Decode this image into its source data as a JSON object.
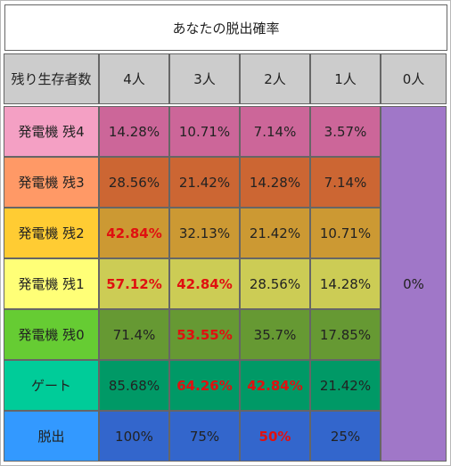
{
  "title": "あなたの脱出確率",
  "header": {
    "corner": "残り生存者数",
    "columns": [
      "4人",
      "3人",
      "2人",
      "1人",
      "0人"
    ]
  },
  "rows": [
    {
      "label": "発電機 残4",
      "values": [
        "14.28%",
        "10.71%",
        "7.14%",
        "3.57%"
      ]
    },
    {
      "label": "発電機 残3",
      "values": [
        "28.56%",
        "21.42%",
        "14.28%",
        "7.14%"
      ]
    },
    {
      "label": "発電機 残2",
      "values": [
        "42.84%",
        "32.13%",
        "21.42%",
        "10.71%"
      ]
    },
    {
      "label": "発電機 残1",
      "values": [
        "57.12%",
        "42.84%",
        "28.56%",
        "14.28%"
      ]
    },
    {
      "label": "発電機 残0",
      "values": [
        "71.4%",
        "53.55%",
        "35.7%",
        "17.85%"
      ]
    },
    {
      "label": "ゲート",
      "values": [
        "85.68%",
        "64.26%",
        "42.84%",
        "21.42%"
      ]
    },
    {
      "label": "脱出",
      "values": [
        "100%",
        "75%",
        "50%",
        "25%"
      ]
    }
  ],
  "zero_column_value": "0%",
  "colors": {
    "header_bg": "#cccccc",
    "row_label_bg": [
      "#f4a0c4",
      "#ff9966",
      "#ffcc33",
      "#ffff77",
      "#66cc33",
      "#00cc99",
      "#3399ff"
    ],
    "row_value_bg": [
      "#cc6699",
      "#cc6633",
      "#cc9933",
      "#cccc55",
      "#669933",
      "#009966",
      "#3366cc"
    ],
    "zero_column_bg": "#a077c8",
    "highlight_text": "#e01010"
  },
  "highlighted_cells": [
    [
      2,
      0
    ],
    [
      3,
      0
    ],
    [
      3,
      1
    ],
    [
      4,
      1
    ],
    [
      5,
      1
    ],
    [
      5,
      2
    ],
    [
      6,
      2
    ]
  ]
}
